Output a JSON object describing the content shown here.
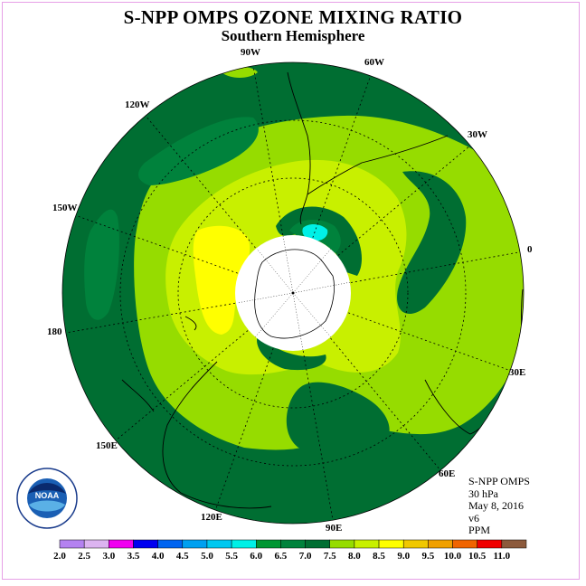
{
  "header": {
    "title": "S-NPP OMPS OZONE MIXING RATIO",
    "subtitle": "Southern Hemisphere"
  },
  "map": {
    "projection": "south-polar-stereographic",
    "longitude_labels": [
      "0",
      "30E",
      "60E",
      "90E",
      "120E",
      "150E",
      "180",
      "150W",
      "120W",
      "90W",
      "60W",
      "30W"
    ],
    "polar_region_color": "#ffffff"
  },
  "info": {
    "product": "S-NPP OMPS",
    "level": "30 hPa",
    "date": "May 8, 2016",
    "version": "v6",
    "units": "PPM"
  },
  "colorbar": {
    "ticks": [
      "2.0",
      "2.5",
      "3.0",
      "3.5",
      "4.0",
      "4.5",
      "5.0",
      "5.5",
      "6.0",
      "6.5",
      "7.0",
      "7.5",
      "8.0",
      "8.5",
      "9.0",
      "9.5",
      "10.0",
      "10.5",
      "11.0"
    ],
    "colors": [
      "#b482f0",
      "#dcb4f0",
      "#f000f0",
      "#0000f0",
      "#0064f0",
      "#00a0f0",
      "#00c8f0",
      "#00f0e6",
      "#009632",
      "#00823c",
      "#006e32",
      "#96dc00",
      "#c8f000",
      "#ffff00",
      "#f0c800",
      "#f0a000",
      "#f06400",
      "#f00000",
      "#8c5a3c"
    ]
  },
  "logo": {
    "text": "NOAA",
    "ring_text": "NATIONAL OCEANIC AND ATMOSPHERIC ADMINISTRATION · U.S. DEPARTMENT OF COMMERCE"
  }
}
